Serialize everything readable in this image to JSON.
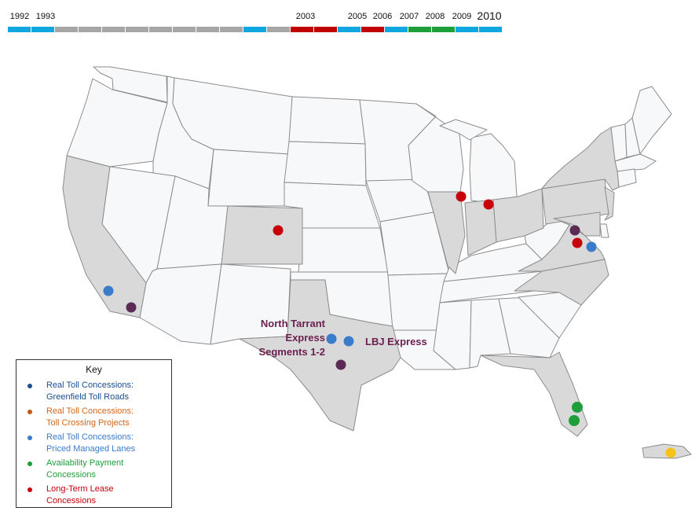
{
  "timeline": {
    "years": [
      {
        "label": "1992",
        "big": false
      },
      {
        "label": "1993",
        "big": false
      },
      {
        "label": "2003",
        "big": false
      },
      {
        "label": "2005",
        "big": false
      },
      {
        "label": "2006",
        "big": false
      },
      {
        "label": "2007",
        "big": false
      },
      {
        "label": "2008",
        "big": false
      },
      {
        "label": "2009",
        "big": false
      },
      {
        "label": "2010",
        "big": true
      }
    ],
    "segments": [
      {
        "color": "#10a7e0"
      },
      {
        "color": "#10a7e0"
      },
      {
        "color": "#a6a6a6"
      },
      {
        "color": "#a6a6a6"
      },
      {
        "color": "#a6a6a6"
      },
      {
        "color": "#a6a6a6"
      },
      {
        "color": "#a6a6a6"
      },
      {
        "color": "#a6a6a6"
      },
      {
        "color": "#a6a6a6"
      },
      {
        "color": "#a6a6a6"
      },
      {
        "color": "#10a7e0"
      },
      {
        "color": "#a6a6a6"
      },
      {
        "color": "#c10000"
      },
      {
        "color": "#c10000"
      },
      {
        "color": "#10a7e0"
      },
      {
        "color": "#c10000"
      },
      {
        "color": "#10a7e0"
      },
      {
        "color": "#1f9e3c"
      },
      {
        "color": "#1f9e3c"
      },
      {
        "color": "#10a7e0"
      },
      {
        "color": "#10a7e0"
      }
    ]
  },
  "map": {
    "labels": {
      "north_tarrant_line1": "North Tarrant",
      "north_tarrant_line2": "Express",
      "north_tarrant_line3": "Segments 1-2",
      "lbj": "LBJ Express"
    },
    "point_colors": {
      "priced_managed": "#3b7bcb",
      "long_term_lease": "#c8000a",
      "availability": "#1f9e3c",
      "multi": "#5c2b55",
      "puerto_rico": "#f7c11a"
    }
  },
  "legend": {
    "title": "Key",
    "items": [
      {
        "color": "#1c4f8f",
        "line1": "Real Toll Concessions:",
        "line2": "Greenfield Toll Roads",
        "text_color": "#1c4f8f"
      },
      {
        "color": "#c45a12",
        "line1": "Real Toll Concessions:",
        "line2": "Toll Crossing Projects",
        "text_color": "#d0661c"
      },
      {
        "color": "#3b7bcb",
        "line1": "Real Toll Concessions:",
        "line2": "Priced Managed Lanes",
        "text_color": "#3b7bcb"
      },
      {
        "color": "#1f9e3c",
        "line1": "Availability Payment",
        "line2": "Concessions",
        "text_color": "#1f9e3c"
      },
      {
        "color": "#c8000a",
        "line1": "Long-Term Lease",
        "line2": "Concessions",
        "text_color": "#c8000a"
      }
    ]
  }
}
